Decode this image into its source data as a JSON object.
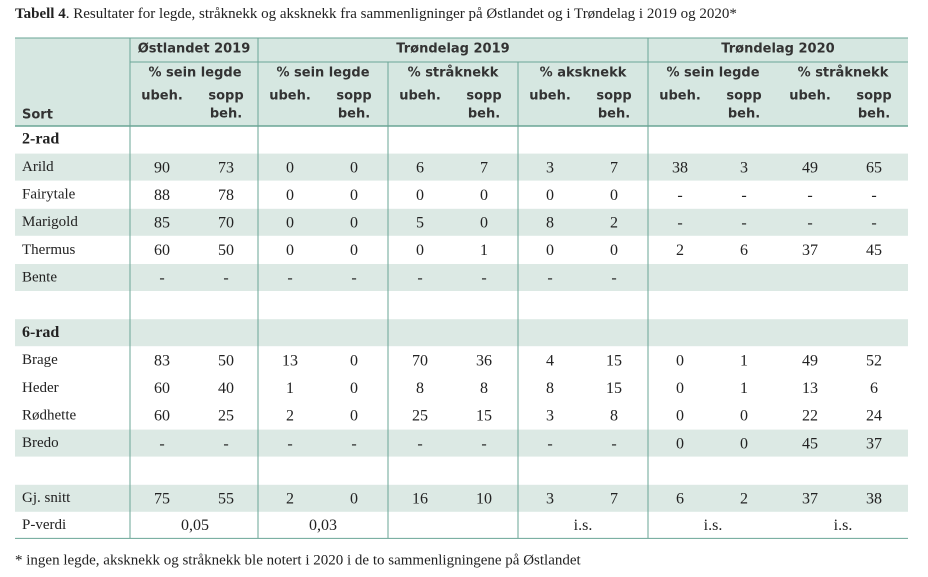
{
  "title": {
    "label": "Tabell 4",
    "text": ". Resultater for legde, stråknekk og aksknekk fra sammenligninger på Østlandet og i Trøndelag i 2019 og 2020*"
  },
  "header": {
    "sort": "Sort",
    "groups": [
      "Østlandet 2019",
      "Trøndelag 2019",
      "Trøndelag 2020"
    ],
    "measures": [
      "% sein legde",
      "% sein legde",
      "% stråknekk",
      "% aksknekk",
      "% sein legde",
      "% stråknekk"
    ],
    "treatments": [
      [
        "ubeh."
      ],
      [
        "sopp",
        "beh."
      ]
    ]
  },
  "sections": [
    {
      "heading": "2-rad",
      "rows": [
        {
          "sort": "Arild",
          "values": [
            90,
            73,
            0,
            0,
            6,
            7,
            3,
            7,
            38,
            3,
            49,
            65
          ]
        },
        {
          "sort": "Fairytale",
          "values": [
            88,
            78,
            0,
            0,
            0,
            0,
            0,
            0,
            "-",
            "-",
            "-",
            "-"
          ]
        },
        {
          "sort": "Marigold",
          "values": [
            85,
            70,
            0,
            0,
            5,
            0,
            8,
            2,
            "-",
            "-",
            "-",
            "-"
          ]
        },
        {
          "sort": "Thermus",
          "values": [
            60,
            50,
            0,
            0,
            0,
            1,
            0,
            0,
            2,
            6,
            37,
            45
          ]
        },
        {
          "sort": "Bente",
          "values": [
            "-",
            "-",
            "-",
            "-",
            "-",
            "-",
            "-",
            "-",
            null,
            null,
            null,
            null
          ]
        }
      ]
    },
    {
      "heading": "6-rad",
      "rows": [
        {
          "sort": "Brage",
          "values": [
            83,
            50,
            13,
            0,
            70,
            36,
            4,
            15,
            0,
            1,
            49,
            52
          ]
        },
        {
          "sort": "Heder",
          "values": [
            60,
            40,
            1,
            0,
            8,
            8,
            8,
            15,
            0,
            1,
            13,
            6
          ]
        },
        {
          "sort": "Rødhette",
          "values": [
            60,
            25,
            2,
            0,
            25,
            15,
            3,
            8,
            0,
            0,
            22,
            24
          ]
        },
        {
          "sort": "Bredo",
          "values": [
            "-",
            "-",
            "-",
            "-",
            "-",
            "-",
            "-",
            "-",
            0,
            0,
            45,
            37
          ]
        }
      ]
    }
  ],
  "summary": {
    "label": "Gj. snitt",
    "values": [
      75,
      55,
      2,
      0,
      16,
      10,
      3,
      7,
      6,
      2,
      37,
      38
    ]
  },
  "pvalue": {
    "label": "P-verdi",
    "values": [
      "0,05",
      "0,03",
      null,
      "i.s.",
      "i.s.",
      "i.s."
    ]
  },
  "footnote": "* ingen legde, aksknekk og stråknekk ble notert i 2020 i de to sammenligningene på Østlandet"
}
